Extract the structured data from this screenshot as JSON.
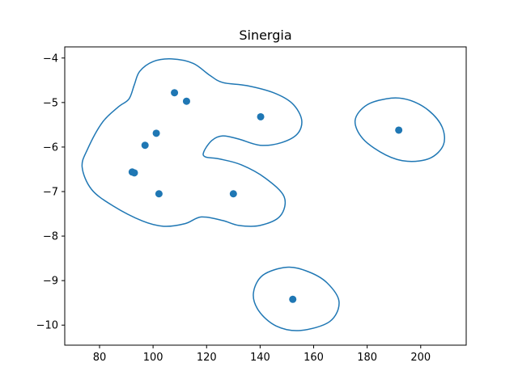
{
  "chart_data": {
    "type": "scatter",
    "title": "Sinergia",
    "xlabel": "",
    "ylabel": "",
    "xlim": [
      67,
      217
    ],
    "ylim": [
      -10.45,
      -3.75
    ],
    "xticks": [
      80,
      100,
      120,
      140,
      160,
      180,
      200
    ],
    "yticks": [
      -10,
      -9,
      -8,
      -7,
      -6,
      -5,
      -4
    ],
    "grid": false,
    "colors": {
      "series": "#1f77b4",
      "axes": "#000000",
      "background": "#ffffff"
    },
    "points": [
      {
        "x": 108.0,
        "y": -4.78
      },
      {
        "x": 112.5,
        "y": -4.97
      },
      {
        "x": 140.2,
        "y": -5.32
      },
      {
        "x": 101.2,
        "y": -5.69
      },
      {
        "x": 97.0,
        "y": -5.96
      },
      {
        "x": 92.2,
        "y": -6.56
      },
      {
        "x": 93.0,
        "y": -6.58
      },
      {
        "x": 102.2,
        "y": -7.05
      },
      {
        "x": 130.0,
        "y": -7.05
      },
      {
        "x": 191.8,
        "y": -5.62
      },
      {
        "x": 152.2,
        "y": -9.42
      }
    ],
    "contours": [
      {
        "closed": true,
        "points": [
          [
            107.0,
            -4.02
          ],
          [
            115.0,
            -4.12
          ],
          [
            121.0,
            -4.38
          ],
          [
            126.0,
            -4.55
          ],
          [
            135.0,
            -4.62
          ],
          [
            145.0,
            -4.78
          ],
          [
            152.0,
            -5.02
          ],
          [
            155.5,
            -5.38
          ],
          [
            154.0,
            -5.7
          ],
          [
            148.0,
            -5.9
          ],
          [
            140.0,
            -5.96
          ],
          [
            132.0,
            -5.82
          ],
          [
            126.0,
            -5.75
          ],
          [
            122.0,
            -5.85
          ],
          [
            119.0,
            -6.1
          ],
          [
            119.5,
            -6.22
          ],
          [
            125.0,
            -6.27
          ],
          [
            133.0,
            -6.4
          ],
          [
            142.0,
            -6.7
          ],
          [
            149.0,
            -7.12
          ],
          [
            147.5,
            -7.55
          ],
          [
            140.0,
            -7.76
          ],
          [
            132.0,
            -7.76
          ],
          [
            126.0,
            -7.65
          ],
          [
            118.0,
            -7.57
          ],
          [
            112.0,
            -7.72
          ],
          [
            104.0,
            -7.78
          ],
          [
            96.0,
            -7.66
          ],
          [
            85.0,
            -7.32
          ],
          [
            77.0,
            -6.95
          ],
          [
            73.5,
            -6.45
          ],
          [
            75.5,
            -6.05
          ],
          [
            81.0,
            -5.45
          ],
          [
            87.0,
            -5.1
          ],
          [
            91.0,
            -4.92
          ],
          [
            93.0,
            -4.6
          ],
          [
            95.0,
            -4.3
          ],
          [
            100.0,
            -4.08
          ]
        ]
      },
      {
        "closed": true,
        "points": [
          [
            189.0,
            -4.9
          ],
          [
            196.0,
            -4.95
          ],
          [
            203.0,
            -5.18
          ],
          [
            208.0,
            -5.55
          ],
          [
            208.5,
            -5.95
          ],
          [
            203.5,
            -6.25
          ],
          [
            195.0,
            -6.32
          ],
          [
            187.0,
            -6.18
          ],
          [
            178.5,
            -5.82
          ],
          [
            175.5,
            -5.4
          ],
          [
            180.0,
            -5.05
          ]
        ]
      },
      {
        "closed": true,
        "points": [
          [
            150.0,
            -8.7
          ],
          [
            158.0,
            -8.8
          ],
          [
            165.0,
            -9.05
          ],
          [
            169.5,
            -9.48
          ],
          [
            166.0,
            -9.92
          ],
          [
            155.0,
            -10.12
          ],
          [
            146.0,
            -10.02
          ],
          [
            139.5,
            -9.68
          ],
          [
            137.5,
            -9.28
          ],
          [
            141.0,
            -8.88
          ]
        ]
      }
    ]
  }
}
